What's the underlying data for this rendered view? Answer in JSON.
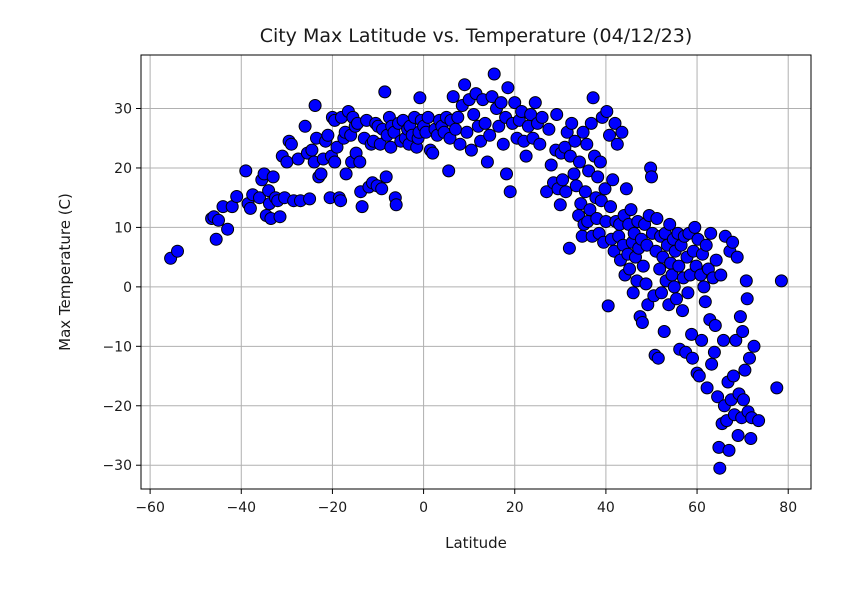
{
  "chart_data": {
    "type": "scatter",
    "title": "City Max Latitude vs. Temperature (04/12/23)",
    "xlabel": "Latitude",
    "ylabel": "Max Temperature (C)",
    "xlim": [
      -62,
      85
    ],
    "ylim": [
      -34,
      39
    ],
    "xticks": [
      -60,
      -40,
      -20,
      0,
      20,
      40,
      60,
      80
    ],
    "yticks": [
      -30,
      -20,
      -10,
      0,
      10,
      20,
      30
    ],
    "grid": true,
    "marker_color": "#0000ff",
    "marker_edge_color": "#000000",
    "series": [
      {
        "points": [
          [
            -55.5,
            4.8
          ],
          [
            -54,
            6
          ],
          [
            -46.5,
            11.5
          ],
          [
            -46,
            11.8
          ],
          [
            -45.5,
            8
          ],
          [
            -45,
            11.2
          ],
          [
            -44,
            13.5
          ],
          [
            -43,
            9.7
          ],
          [
            -42,
            13.5
          ],
          [
            -41,
            15.2
          ],
          [
            -39,
            19.5
          ],
          [
            -38.5,
            14
          ],
          [
            -38,
            13.2
          ],
          [
            -37.5,
            15.5
          ],
          [
            -36,
            15
          ],
          [
            -35.5,
            18
          ],
          [
            -35,
            19
          ],
          [
            -34.5,
            12
          ],
          [
            -34,
            16.2
          ],
          [
            -33.8,
            14
          ],
          [
            -33.5,
            11.5
          ],
          [
            -33,
            18.5
          ],
          [
            -32.5,
            15
          ],
          [
            -32,
            14.5
          ],
          [
            -31.5,
            11.8
          ],
          [
            -31,
            22
          ],
          [
            -30.5,
            15
          ],
          [
            -30,
            21
          ],
          [
            -29.5,
            24.5
          ],
          [
            -29,
            24
          ],
          [
            -28.5,
            14.5
          ],
          [
            -27.5,
            21.5
          ],
          [
            -27,
            14.5
          ],
          [
            -26,
            27
          ],
          [
            -25.5,
            22.5
          ],
          [
            -25,
            14.8
          ],
          [
            -24.5,
            23
          ],
          [
            -24,
            21
          ],
          [
            -23.8,
            30.5
          ],
          [
            -23.5,
            25
          ],
          [
            -23,
            18.5
          ],
          [
            -22.5,
            19
          ],
          [
            -22,
            21.5
          ],
          [
            -21.5,
            24.5
          ],
          [
            -21,
            25.5
          ],
          [
            -20.5,
            15
          ],
          [
            -20.2,
            22
          ],
          [
            -20,
            28.5
          ],
          [
            -19.5,
            28
          ],
          [
            -19.5,
            21
          ],
          [
            -19,
            23.5
          ],
          [
            -18.5,
            15
          ],
          [
            -18.2,
            14.5
          ],
          [
            -18,
            28.5
          ],
          [
            -17.5,
            25
          ],
          [
            -17.2,
            26
          ],
          [
            -17,
            19
          ],
          [
            -16.5,
            29.5
          ],
          [
            -16,
            25.5
          ],
          [
            -15.8,
            21
          ],
          [
            -15.5,
            28.5
          ],
          [
            -15,
            27
          ],
          [
            -14.8,
            22.5
          ],
          [
            -14.5,
            27.5
          ],
          [
            -14,
            21
          ],
          [
            -13.8,
            16
          ],
          [
            -13.5,
            13.5
          ],
          [
            -13,
            25
          ],
          [
            -12.5,
            28
          ],
          [
            -12,
            16.8
          ],
          [
            -11.5,
            24
          ],
          [
            -11.2,
            17.5
          ],
          [
            -11,
            24.5
          ],
          [
            -10.5,
            27.5
          ],
          [
            -10.2,
            17
          ],
          [
            -10,
            27
          ],
          [
            -9.5,
            24
          ],
          [
            -9.2,
            16.5
          ],
          [
            -9,
            26.5
          ],
          [
            -8.5,
            32.8
          ],
          [
            -8.2,
            18.5
          ],
          [
            -8,
            25.5
          ],
          [
            -7.5,
            28.5
          ],
          [
            -7.2,
            23.5
          ],
          [
            -7,
            27
          ],
          [
            -6.5,
            26
          ],
          [
            -6.2,
            15
          ],
          [
            -6,
            13.8
          ],
          [
            -5.5,
            27.5
          ],
          [
            -5,
            24.5
          ],
          [
            -4.5,
            28
          ],
          [
            -4,
            25
          ],
          [
            -3.5,
            26.5
          ],
          [
            -3.2,
            24
          ],
          [
            -3,
            27
          ],
          [
            -2.5,
            25.5
          ],
          [
            -2,
            28.5
          ],
          [
            -1.5,
            23.5
          ],
          [
            -1.2,
            25
          ],
          [
            -1,
            26
          ],
          [
            -0.8,
            31.8
          ],
          [
            -0.5,
            28
          ],
          [
            0,
            27
          ],
          [
            0.5,
            26
          ],
          [
            1,
            28.5
          ],
          [
            1.5,
            23
          ],
          [
            2,
            22.5
          ],
          [
            2.5,
            26.5
          ],
          [
            3,
            25.5
          ],
          [
            3.5,
            28
          ],
          [
            4,
            27
          ],
          [
            4.5,
            26
          ],
          [
            5,
            28.5
          ],
          [
            5.5,
            19.5
          ],
          [
            5.8,
            25
          ],
          [
            6,
            28
          ],
          [
            6.5,
            32
          ],
          [
            7,
            26.5
          ],
          [
            7.5,
            28.5
          ],
          [
            8,
            24
          ],
          [
            8.5,
            30.5
          ],
          [
            9,
            34
          ],
          [
            9.5,
            26
          ],
          [
            10,
            31.5
          ],
          [
            10.5,
            23
          ],
          [
            11,
            29
          ],
          [
            11.5,
            32.5
          ],
          [
            12,
            27
          ],
          [
            12.5,
            24.5
          ],
          [
            13,
            31.5
          ],
          [
            13.5,
            27.5
          ],
          [
            14,
            21
          ],
          [
            14.5,
            25.5
          ],
          [
            15,
            32
          ],
          [
            15.5,
            35.8
          ],
          [
            16,
            30
          ],
          [
            16.5,
            27
          ],
          [
            17,
            31
          ],
          [
            17.5,
            24
          ],
          [
            18,
            28.5
          ],
          [
            18.2,
            19
          ],
          [
            18.5,
            33.5
          ],
          [
            19,
            16
          ],
          [
            19.5,
            27.5
          ],
          [
            20,
            31
          ],
          [
            20.5,
            25
          ],
          [
            21,
            28
          ],
          [
            21.5,
            29.5
          ],
          [
            22,
            24.5
          ],
          [
            22.5,
            22
          ],
          [
            23,
            27
          ],
          [
            23.5,
            29
          ],
          [
            24,
            25
          ],
          [
            24.5,
            31
          ],
          [
            25,
            27.5
          ],
          [
            25.5,
            24
          ],
          [
            26,
            28.5
          ],
          [
            27,
            16
          ],
          [
            27.5,
            26.5
          ],
          [
            28,
            20.5
          ],
          [
            28.5,
            17.5
          ],
          [
            29,
            23
          ],
          [
            29.2,
            29
          ],
          [
            29.5,
            16.5
          ],
          [
            30,
            13.8
          ],
          [
            30.2,
            22.5
          ],
          [
            30.5,
            18
          ],
          [
            31,
            23.5
          ],
          [
            31.2,
            16
          ],
          [
            31.5,
            26
          ],
          [
            32,
            6.5
          ],
          [
            32.2,
            22
          ],
          [
            32.5,
            27.5
          ],
          [
            33,
            19
          ],
          [
            33.2,
            24.5
          ],
          [
            33.5,
            17
          ],
          [
            34,
            12
          ],
          [
            34.2,
            21
          ],
          [
            34.5,
            14
          ],
          [
            34.8,
            8.5
          ],
          [
            35,
            26
          ],
          [
            35.2,
            10.5
          ],
          [
            35.5,
            16
          ],
          [
            35.8,
            24
          ],
          [
            36,
            11
          ],
          [
            36.2,
            19.5
          ],
          [
            36.5,
            13
          ],
          [
            36.8,
            27.5
          ],
          [
            37,
            8.5
          ],
          [
            37.2,
            31.8
          ],
          [
            37.5,
            22
          ],
          [
            37.8,
            15
          ],
          [
            38,
            11.5
          ],
          [
            38.2,
            18.5
          ],
          [
            38.5,
            9
          ],
          [
            38.8,
            21
          ],
          [
            39,
            14.5
          ],
          [
            39.2,
            28.5
          ],
          [
            39.5,
            7.5
          ],
          [
            39.8,
            16.5
          ],
          [
            40,
            11
          ],
          [
            40.2,
            29.5
          ],
          [
            40.5,
            -3.2
          ],
          [
            40.8,
            25.5
          ],
          [
            41,
            13.5
          ],
          [
            41.2,
            8
          ],
          [
            41.5,
            18
          ],
          [
            41.8,
            6
          ],
          [
            42,
            27.5
          ],
          [
            42.2,
            11
          ],
          [
            42.5,
            24
          ],
          [
            42.8,
            8.5
          ],
          [
            43,
            10.5
          ],
          [
            43.2,
            4.5
          ],
          [
            43.5,
            26
          ],
          [
            43.8,
            7
          ],
          [
            44,
            12
          ],
          [
            44.2,
            2
          ],
          [
            44.5,
            16.5
          ],
          [
            44.8,
            5.5
          ],
          [
            45,
            10.5
          ],
          [
            45.2,
            3
          ],
          [
            45.5,
            13
          ],
          [
            45.8,
            7.5
          ],
          [
            46,
            -1
          ],
          [
            46.2,
            9
          ],
          [
            46.5,
            5
          ],
          [
            46.8,
            1
          ],
          [
            47,
            11
          ],
          [
            47.2,
            6.5
          ],
          [
            47.5,
            -5
          ],
          [
            47.8,
            8
          ],
          [
            48,
            -6
          ],
          [
            48.2,
            3.5
          ],
          [
            48.5,
            10.5
          ],
          [
            48.8,
            0.5
          ],
          [
            49,
            7
          ],
          [
            49.2,
            -3
          ],
          [
            49.5,
            12
          ],
          [
            49.8,
            20
          ],
          [
            50,
            18.5
          ],
          [
            50.2,
            9
          ],
          [
            50.5,
            -1.5
          ],
          [
            50.8,
            -11.5
          ],
          [
            51,
            6
          ],
          [
            51.2,
            11.5
          ],
          [
            51.5,
            -12
          ],
          [
            51.8,
            3
          ],
          [
            52,
            8.5
          ],
          [
            52.2,
            -1
          ],
          [
            52.5,
            5
          ],
          [
            52.8,
            -7.5
          ],
          [
            53,
            9
          ],
          [
            53.2,
            1
          ],
          [
            53.5,
            7
          ],
          [
            53.8,
            -3
          ],
          [
            54,
            10.5
          ],
          [
            54.2,
            4
          ],
          [
            54.5,
            2
          ],
          [
            54.8,
            8
          ],
          [
            55,
            0
          ],
          [
            55.2,
            6
          ],
          [
            55.5,
            -2
          ],
          [
            55.8,
            9
          ],
          [
            56,
            3.5
          ],
          [
            56.2,
            -10.5
          ],
          [
            56.5,
            7
          ],
          [
            56.8,
            -4
          ],
          [
            57,
            1.5
          ],
          [
            57.2,
            8.5
          ],
          [
            57.5,
            -11
          ],
          [
            57.8,
            5
          ],
          [
            58,
            -1
          ],
          [
            58.2,
            9
          ],
          [
            58.5,
            2
          ],
          [
            58.8,
            -8
          ],
          [
            59,
            -12
          ],
          [
            59.2,
            6
          ],
          [
            59.5,
            10
          ],
          [
            59.8,
            3.5
          ],
          [
            60,
            -14.5
          ],
          [
            60.2,
            8
          ],
          [
            60.5,
            -15
          ],
          [
            60.8,
            2
          ],
          [
            61,
            -9
          ],
          [
            61.2,
            5.5
          ],
          [
            61.5,
            0
          ],
          [
            61.8,
            -2.5
          ],
          [
            62,
            7
          ],
          [
            62.2,
            -17
          ],
          [
            62.5,
            3
          ],
          [
            62.8,
            -5.5
          ],
          [
            63,
            9
          ],
          [
            63.2,
            -13
          ],
          [
            63.5,
            1.5
          ],
          [
            63.8,
            -11
          ],
          [
            64,
            -6.5
          ],
          [
            64.2,
            4.5
          ],
          [
            64.5,
            -18.5
          ],
          [
            64.8,
            -27
          ],
          [
            65,
            -30.5
          ],
          [
            65.2,
            2
          ],
          [
            65.5,
            -23
          ],
          [
            65.8,
            -9
          ],
          [
            66,
            -20
          ],
          [
            66.2,
            8.5
          ],
          [
            66.5,
            -22.5
          ],
          [
            66.8,
            -16
          ],
          [
            67,
            -27.5
          ],
          [
            67.2,
            6
          ],
          [
            67.5,
            -19
          ],
          [
            67.8,
            7.5
          ],
          [
            68,
            -15
          ],
          [
            68.2,
            -21.5
          ],
          [
            68.5,
            -9
          ],
          [
            68.8,
            5
          ],
          [
            69,
            -25
          ],
          [
            69.2,
            -18
          ],
          [
            69.5,
            -5
          ],
          [
            69.8,
            -22
          ],
          [
            70,
            -7.5
          ],
          [
            70.2,
            -19
          ],
          [
            70.5,
            -14
          ],
          [
            70.8,
            1
          ],
          [
            71,
            -2
          ],
          [
            71.2,
            -21
          ],
          [
            71.5,
            -12
          ],
          [
            71.8,
            -25.5
          ],
          [
            72,
            -22
          ],
          [
            72.5,
            -10
          ],
          [
            73.5,
            -22.5
          ],
          [
            77.5,
            -17
          ],
          [
            78.5,
            1
          ]
        ]
      }
    ]
  }
}
